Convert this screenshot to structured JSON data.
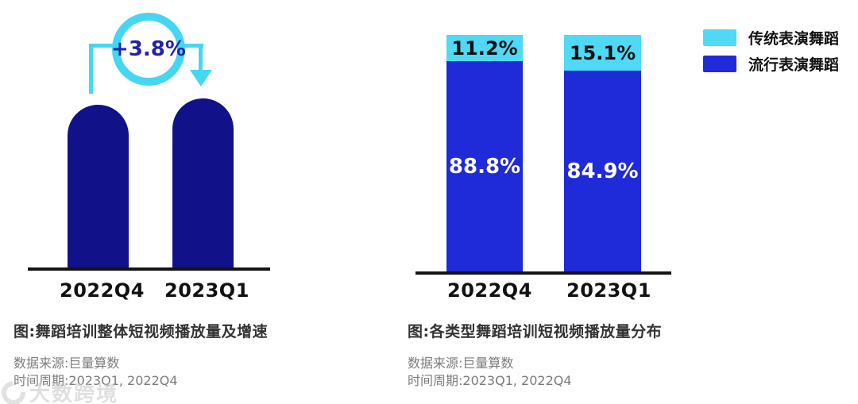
{
  "page": {
    "background": "#ffffff"
  },
  "colors": {
    "navy_bar": "#11118a",
    "royal_blue": "#1f2ad8",
    "cyan": "#4fd9f5",
    "accent_ring_cyan": "#45d6f2",
    "annotation_text": "#2023a8",
    "axis": "#141414",
    "title_text": "#333333",
    "muted_text": "#7b7b7b",
    "tick_text": "#111111",
    "pct_on_cyan": "#101010",
    "pct_on_blue": "#ffffff",
    "watermark": "#c6c6c6"
  },
  "watermark": {
    "text": "大数跨境"
  },
  "chart_data": [
    {
      "type": "bar",
      "title": "图:舞蹈培训整体短视频播放量及增速",
      "categories": [
        "2022Q4",
        "2023Q1"
      ],
      "values_relative_index": [
        100,
        103.8
      ],
      "growth_label": "+3.8%",
      "bar_color": "#11118a",
      "xlabel": "",
      "ylabel": "",
      "grid": false,
      "legend_position": "none",
      "source": "数据来源:巨量算数",
      "period": "时间周期:2023Q1, 2022Q4"
    },
    {
      "type": "bar",
      "stacked": true,
      "unit": "%",
      "title": "图:各类型舞蹈培训短视频播放量分布",
      "categories": [
        "2022Q4",
        "2023Q1"
      ],
      "series": [
        {
          "name": "传统表演舞蹈",
          "color": "#4fd9f5",
          "values": [
            11.2,
            15.1
          ],
          "labels": [
            "11.2%",
            "15.1%"
          ]
        },
        {
          "name": "流行表演舞蹈",
          "color": "#1f2ad8",
          "values": [
            88.8,
            84.9
          ],
          "labels": [
            "88.8%",
            "84.9%"
          ]
        }
      ],
      "ylim": [
        0,
        100
      ],
      "grid": false,
      "legend_position": "top-right",
      "source": "数据来源:巨量算数",
      "period": "时间周期:2023Q1, 2022Q4"
    }
  ]
}
